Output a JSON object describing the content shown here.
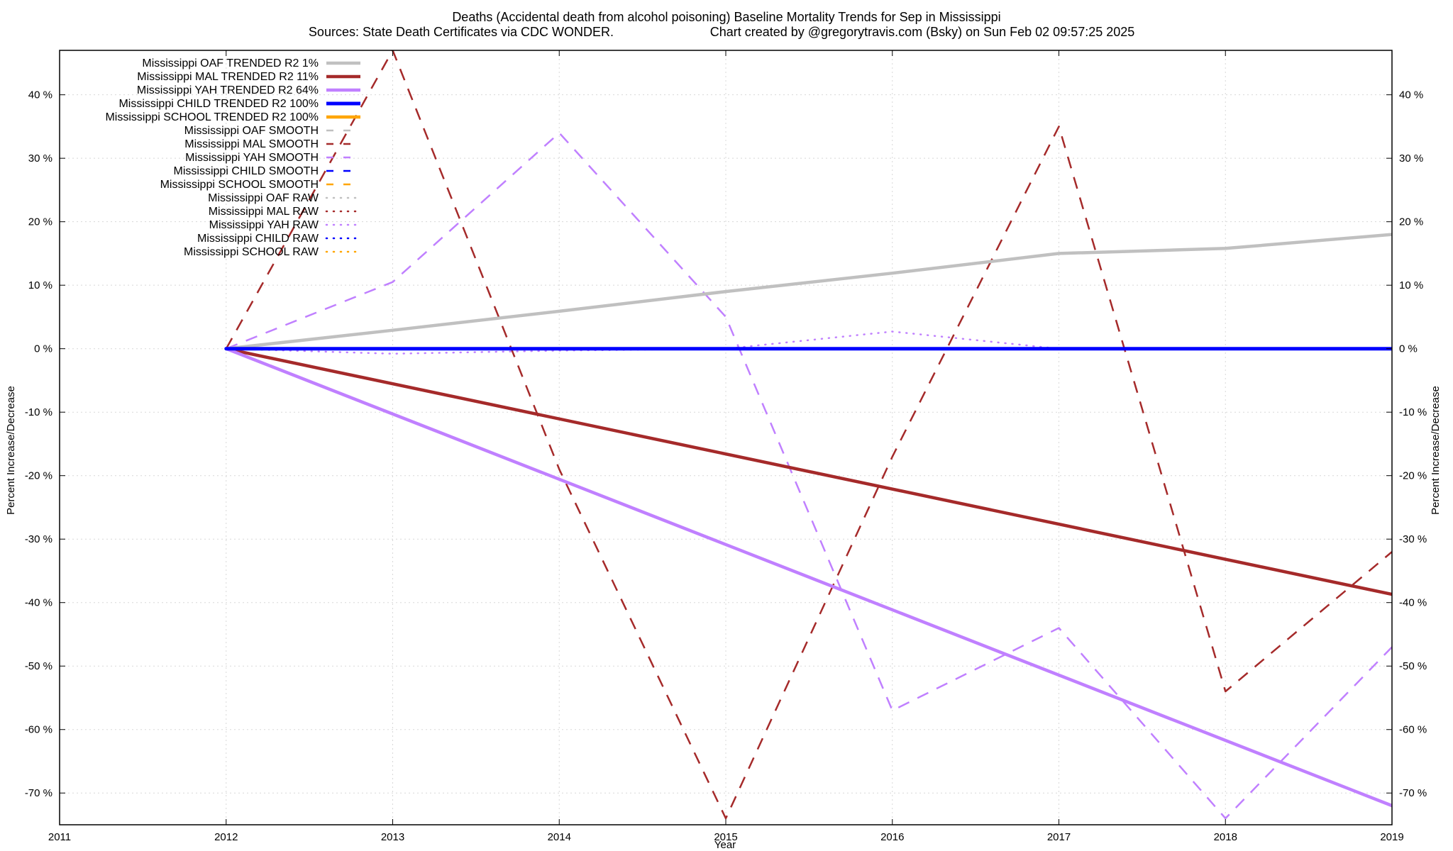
{
  "chart_data": {
    "type": "line",
    "title": "Deaths (Accidental death from alcohol poisoning)  Baseline Mortality Trends for Sep in Mississippi",
    "subtitle_left": "Sources: State Death Certificates via CDC WONDER.",
    "subtitle_right": "Chart created by @gregorytravis.com (Bsky) on Sun Feb 02 09:57:25 2025",
    "xlabel": "Year",
    "ylabel_left": "Percent Increase/Decrease",
    "ylabel_right": "Percent Increase/Decrease",
    "xlim": [
      2011,
      2019
    ],
    "ylim": [
      -75,
      47
    ],
    "x_ticks": [
      2011,
      2012,
      2013,
      2014,
      2015,
      2016,
      2017,
      2018,
      2019
    ],
    "x_tick_labels": [
      "2011",
      "2012",
      "2013",
      "2014",
      "2015",
      "2016",
      "2017",
      "2018",
      "2019"
    ],
    "y_ticks": [
      40,
      30,
      20,
      10,
      0,
      -10,
      -20,
      -30,
      -40,
      -50,
      -60,
      -70
    ],
    "y_tick_labels": [
      "40 %",
      "30 %",
      "20 %",
      "10 %",
      "0 %",
      "-10 %",
      "-20 %",
      "-30 %",
      "-40 %",
      "-50 %",
      "-60 %",
      "-70 %"
    ],
    "grid": true,
    "legend_position": "top-left",
    "series": [
      {
        "name": "Mississippi OAF TRENDED R2  1%",
        "style": "solid",
        "color": "#c0c0c0",
        "x": [
          2012,
          2013,
          2014,
          2015,
          2016,
          2017,
          2018,
          2019
        ],
        "y": [
          0,
          2.9,
          5.9,
          9.0,
          11.9,
          15.0,
          15.8,
          18.0
        ]
      },
      {
        "name": "Mississippi MAL TRENDED R2  11%",
        "style": "solid",
        "color": "#a52a2a",
        "x": [
          2012,
          2019
        ],
        "y": [
          0,
          -38.7
        ]
      },
      {
        "name": "Mississippi YAH TRENDED R2  64%",
        "style": "solid",
        "color": "#c080ff",
        "x": [
          2012,
          2019
        ],
        "y": [
          0,
          -72
        ]
      },
      {
        "name": "Mississippi CHILD TRENDED R2 100%",
        "style": "solid",
        "color": "#0000ff",
        "x": [
          2012,
          2019
        ],
        "y": [
          0,
          0
        ]
      },
      {
        "name": "Mississippi SCHOOL TRENDED R2 100%",
        "style": "solid",
        "color": "#ffa500",
        "x": [],
        "y": []
      },
      {
        "name": "Mississippi OAF SMOOTH",
        "style": "dashed",
        "color": "#c0c0c0",
        "x": [],
        "y": []
      },
      {
        "name": "Mississippi MAL SMOOTH",
        "style": "dashed",
        "color": "#a52a2a",
        "x": [
          2012,
          2013,
          2014,
          2015,
          2016,
          2017,
          2018,
          2019
        ],
        "y": [
          0,
          47,
          -19,
          -74,
          -17,
          35,
          -54,
          -32
        ]
      },
      {
        "name": "Mississippi YAH SMOOTH",
        "style": "dashed",
        "color": "#c080ff",
        "x": [
          2012,
          2013,
          2014,
          2015,
          2016,
          2017,
          2018,
          2019
        ],
        "y": [
          0,
          10.5,
          34,
          5,
          -57,
          -44,
          -74,
          -47
        ]
      },
      {
        "name": "Mississippi CHILD SMOOTH",
        "style": "dashed",
        "color": "#0000ff",
        "x": [],
        "y": []
      },
      {
        "name": "Mississippi SCHOOL SMOOTH",
        "style": "dashed",
        "color": "#ffa500",
        "x": [],
        "y": []
      },
      {
        "name": "Mississippi OAF RAW",
        "style": "dotted",
        "color": "#c0c0c0",
        "x": [],
        "y": []
      },
      {
        "name": "Mississippi MAL RAW",
        "style": "dotted",
        "color": "#a52a2a",
        "x": [],
        "y": []
      },
      {
        "name": "Mississippi YAH RAW",
        "style": "dotted",
        "color": "#c080ff",
        "x": [
          2012,
          2013,
          2014,
          2015,
          2016,
          2017,
          2018,
          2019
        ],
        "y": [
          0,
          -0.8,
          -0.3,
          0,
          2.7,
          0,
          0,
          0
        ]
      },
      {
        "name": "Mississippi CHILD RAW",
        "style": "dotted",
        "color": "#0000ff",
        "x": [
          2012,
          2013,
          2014,
          2015,
          2016,
          2017,
          2018,
          2019
        ],
        "y": [
          0,
          0,
          0,
          0,
          0,
          0,
          0,
          0
        ]
      },
      {
        "name": "Mississippi SCHOOL RAW",
        "style": "dotted",
        "color": "#ffa500",
        "x": [],
        "y": []
      }
    ]
  }
}
